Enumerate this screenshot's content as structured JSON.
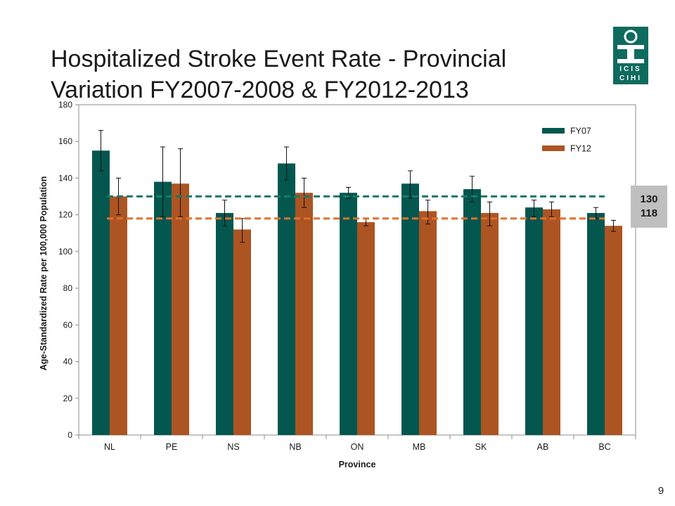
{
  "slide": {
    "title_line1": "Hospitalized Stroke Event Rate - Provincial",
    "title_line2": "Variation FY2007-2008 & FY2012-2013",
    "page_number": "9"
  },
  "logo": {
    "line1": "ICIS",
    "line2": "CIHI"
  },
  "chart_data": {
    "type": "bar",
    "title": "",
    "xlabel": "Province",
    "ylabel": "Age-Standardized Rate per 100,000 Population",
    "ylim": [
      0,
      180
    ],
    "yticks": [
      0,
      20,
      40,
      60,
      80,
      100,
      120,
      140,
      160,
      180
    ],
    "categories": [
      "NL",
      "PE",
      "NS",
      "NB",
      "ON",
      "MB",
      "SK",
      "AB",
      "BC"
    ],
    "series": [
      {
        "name": "FY07",
        "color": "#03574f",
        "values": [
          155,
          138,
          121,
          148,
          132,
          137,
          134,
          124,
          121
        ],
        "error_low": [
          144,
          119,
          114,
          139,
          129,
          129,
          127,
          119,
          118
        ],
        "error_high": [
          166,
          157,
          128,
          157,
          135,
          144,
          141,
          128,
          124
        ]
      },
      {
        "name": "FY12",
        "color": "#ad5423",
        "values": [
          130,
          137,
          112,
          132,
          116,
          122,
          121,
          123,
          114
        ],
        "error_low": [
          120,
          119,
          105,
          124,
          114,
          115,
          114,
          119,
          111
        ],
        "error_high": [
          140,
          156,
          118,
          140,
          118,
          128,
          127,
          127,
          117
        ]
      }
    ],
    "reference_lines": [
      {
        "series": "FY07",
        "value": 130,
        "label": "130",
        "color": "#1b7a68",
        "style": "dashed"
      },
      {
        "series": "FY12",
        "value": 118,
        "label": "118",
        "color": "#e0702c",
        "style": "dashed"
      }
    ],
    "legend_position": "top-right",
    "grid": false
  }
}
